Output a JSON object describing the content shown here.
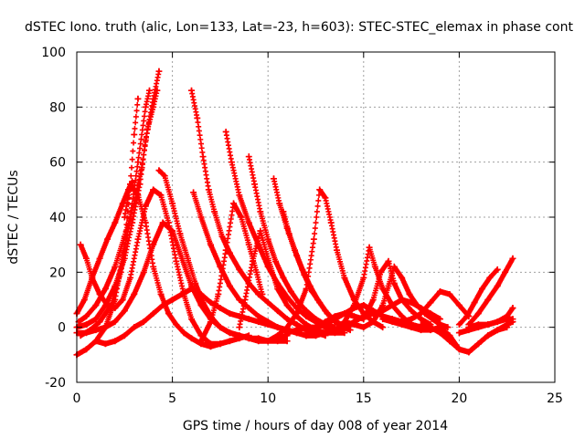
{
  "chart_data": {
    "type": "scatter",
    "title": "dSTEC Iono. truth (alic, Lon=133, Lat=-23, h=603): STEC-STEC_elemax in phase cont",
    "xlabel": "GPS time / hours of day 008 of year 2014",
    "ylabel": "dSTEC  / TECUs",
    "xlim": [
      0,
      25
    ],
    "ylim": [
      -20,
      100
    ],
    "xticks": [
      0,
      5,
      10,
      15,
      20,
      25
    ],
    "yticks": [
      -20,
      0,
      20,
      40,
      60,
      80,
      100
    ],
    "grid": true,
    "marker": "+",
    "colors": {
      "series": "#ff0000"
    },
    "series": [
      {
        "x": [
          0.0,
          0.5,
          1.0,
          1.5,
          2.0,
          2.5,
          2.8,
          3.0,
          3.2
        ],
        "y": [
          -10,
          -8,
          -5,
          0,
          10,
          30,
          52,
          70,
          83
        ]
      },
      {
        "x": [
          0.2,
          0.7,
          1.2,
          1.8,
          2.3,
          2.8,
          3.2,
          3.6,
          3.8
        ],
        "y": [
          -3,
          -1,
          2,
          8,
          20,
          40,
          60,
          80,
          86
        ]
      },
      {
        "x": [
          0.0,
          0.5,
          1.0,
          1.5,
          2.0,
          2.5,
          2.9,
          3.3,
          3.6,
          4.0,
          4.3
        ],
        "y": [
          0,
          1,
          3,
          8,
          15,
          25,
          38,
          52,
          68,
          83,
          93
        ]
      },
      {
        "x": [
          0.1,
          0.5,
          1.0,
          1.5,
          2.0,
          2.5,
          3.0,
          3.4,
          3.7,
          4.0,
          4.2
        ],
        "y": [
          2,
          4,
          8,
          14,
          22,
          33,
          45,
          58,
          72,
          80,
          86
        ]
      },
      {
        "x": [
          0.0,
          0.4,
          0.8,
          1.2,
          1.6,
          2.0,
          2.4,
          2.7,
          2.9
        ],
        "y": [
          5,
          10,
          18,
          25,
          32,
          38,
          45,
          50,
          53
        ]
      },
      {
        "x": [
          0.2,
          0.5,
          0.8,
          1.2,
          1.6,
          2.0,
          2.4,
          2.8,
          3.2,
          3.6,
          4.0,
          4.4,
          4.8,
          5.2,
          5.6,
          6.0,
          6.5,
          7.0,
          7.5
        ],
        "y": [
          30,
          25,
          18,
          12,
          8,
          7,
          10,
          18,
          32,
          44,
          50,
          48,
          38,
          24,
          12,
          3,
          -3,
          -6,
          -6
        ]
      },
      {
        "x": [
          2.5,
          2.8,
          3.2,
          3.6,
          4.0,
          4.4,
          4.8,
          5.2,
          5.6,
          6.0,
          6.5,
          7.0,
          7.5,
          8.0,
          8.5,
          9.0
        ],
        "y": [
          40,
          52,
          48,
          38,
          22,
          12,
          5,
          1,
          -2,
          -4,
          -6,
          -7,
          -6,
          -5,
          -4,
          -3
        ]
      },
      {
        "x": [
          0.0,
          0.5,
          1.0,
          1.5,
          2.0,
          2.5,
          3.0,
          3.5,
          4.0,
          4.5,
          5.0,
          5.5,
          6.0,
          6.5,
          7.0,
          7.5,
          8.0,
          8.5,
          9.0,
          9.5,
          10.0,
          10.5,
          11.0
        ],
        "y": [
          -2,
          -2,
          -1,
          0,
          2,
          6,
          12,
          20,
          30,
          38,
          35,
          25,
          15,
          8,
          3,
          0,
          -2,
          -3,
          -4,
          -5,
          -5,
          -4,
          -3
        ]
      },
      {
        "x": [
          4.3,
          4.6,
          5.0,
          5.4,
          5.8,
          6.2,
          6.6,
          7.0,
          7.5,
          8.0,
          8.5,
          9.0,
          9.5,
          10.0,
          10.5,
          11.0
        ],
        "y": [
          57,
          55,
          45,
          34,
          25,
          16,
          9,
          4,
          0,
          -2,
          -3,
          -4,
          -4,
          -5,
          -5,
          -5
        ]
      },
      {
        "x": [
          1.0,
          1.5,
          2.0,
          2.5,
          3.0,
          3.5,
          4.0,
          4.5,
          5.0,
          5.5,
          6.0,
          6.5,
          7.0,
          7.5,
          8.0,
          8.5,
          9.0,
          9.5,
          10.0,
          10.5,
          11.0,
          11.5,
          12.0
        ],
        "y": [
          -5,
          -6,
          -5,
          -3,
          0,
          2,
          5,
          8,
          10,
          12,
          14,
          12,
          9,
          7,
          5,
          4,
          3,
          2,
          1,
          0,
          -1,
          -2,
          -3
        ]
      },
      {
        "x": [
          6.0,
          6.3,
          6.6,
          6.9,
          7.2,
          7.6,
          8.0,
          8.5,
          9.0,
          9.5,
          10.0,
          10.5,
          11.0,
          11.5,
          12.0,
          12.5,
          13.0
        ],
        "y": [
          86,
          76,
          62,
          50,
          42,
          33,
          27,
          21,
          16,
          12,
          9,
          6,
          3,
          1,
          -1,
          -2,
          -3
        ]
      },
      {
        "x": [
          6.1,
          6.5,
          7.0,
          7.5,
          8.0,
          8.5,
          9.0,
          9.5,
          10.0,
          10.5,
          11.0,
          11.5,
          12.0,
          12.5
        ],
        "y": [
          49,
          40,
          30,
          22,
          15,
          10,
          7,
          4,
          2,
          0,
          -1,
          -2,
          -3,
          -3
        ]
      },
      {
        "x": [
          6.5,
          7.0,
          7.4,
          7.8,
          8.2,
          8.6,
          9.0,
          9.4,
          9.7
        ],
        "y": [
          -5,
          2,
          12,
          28,
          45,
          40,
          30,
          20,
          12
        ]
      },
      {
        "x": [
          7.8,
          8.1,
          8.5,
          9.0,
          9.5,
          10.0,
          10.5,
          11.0,
          11.5,
          12.0,
          12.5,
          13.0,
          13.5
        ],
        "y": [
          71,
          60,
          48,
          38,
          30,
          22,
          16,
          11,
          7,
          4,
          2,
          0,
          -1
        ]
      },
      {
        "x": [
          8.5,
          8.8,
          9.2,
          9.6,
          10.0,
          10.5,
          11.0,
          11.5,
          12.0,
          12.5,
          13.0,
          13.5,
          14.0
        ],
        "y": [
          0,
          10,
          24,
          35,
          25,
          14,
          8,
          4,
          1,
          -1,
          -2,
          -2,
          -2
        ]
      },
      {
        "x": [
          9.0,
          9.3,
          9.6,
          10.0,
          10.4,
          10.8,
          11.2,
          11.6,
          12.0,
          12.5,
          13.0,
          13.5
        ],
        "y": [
          62,
          52,
          42,
          32,
          24,
          18,
          13,
          9,
          6,
          3,
          1,
          0
        ]
      },
      {
        "x": [
          10.3,
          10.6,
          11.0,
          11.4,
          11.8,
          12.2,
          12.6,
          13.0,
          13.4,
          13.8,
          14.2
        ],
        "y": [
          54,
          45,
          36,
          28,
          21,
          15,
          10,
          6,
          3,
          1,
          0
        ]
      },
      {
        "x": [
          10.8,
          11.1,
          11.5,
          11.9,
          12.3,
          12.7,
          13.1,
          13.5,
          13.9,
          14.3
        ],
        "y": [
          42,
          34,
          26,
          19,
          13,
          9,
          5,
          2,
          0,
          -1
        ]
      },
      {
        "x": [
          10.0,
          10.5,
          11.0,
          11.5,
          12.0,
          12.4,
          12.7,
          13.0,
          13.3,
          13.6,
          14.0,
          14.5,
          15.0,
          15.5,
          16.0
        ],
        "y": [
          -5,
          -3,
          0,
          5,
          14,
          32,
          50,
          47,
          38,
          28,
          18,
          10,
          5,
          2,
          0
        ]
      },
      {
        "x": [
          11.0,
          11.5,
          12.0,
          12.5,
          13.0,
          13.5,
          14.0,
          14.5,
          15.0,
          15.5,
          16.0,
          16.5,
          17.0,
          17.5,
          18.0
        ],
        "y": [
          -2,
          -1,
          0,
          0,
          1,
          3,
          5,
          7,
          8,
          6,
          4,
          3,
          2,
          1,
          0
        ]
      },
      {
        "x": [
          12.0,
          12.5,
          13.0,
          13.5,
          14.0,
          14.5,
          15.0,
          15.3,
          15.6,
          16.0,
          16.5,
          17.0,
          17.5,
          18.0
        ],
        "y": [
          -3,
          -3,
          -2,
          -1,
          2,
          8,
          18,
          29,
          22,
          14,
          8,
          4,
          1,
          0
        ]
      },
      {
        "x": [
          12.5,
          13.0,
          13.5,
          14.0,
          14.5,
          15.0,
          15.5,
          15.9,
          16.3,
          16.6,
          17.0,
          17.5,
          18.0,
          18.5
        ],
        "y": [
          0,
          2,
          4,
          5,
          4,
          3,
          10,
          20,
          24,
          16,
          10,
          6,
          3,
          1
        ]
      },
      {
        "x": [
          13.0,
          13.5,
          14.0,
          14.5,
          15.0,
          15.5,
          16.0,
          16.5,
          17.0,
          17.5,
          18.0,
          18.5,
          19.0
        ],
        "y": [
          -2,
          -1,
          0,
          2,
          4,
          5,
          6,
          8,
          10,
          9,
          7,
          5,
          3
        ]
      },
      {
        "x": [
          14.0,
          14.5,
          15.0,
          15.5,
          16.0,
          16.3,
          16.6,
          17.0,
          17.4,
          17.8,
          18.2,
          18.6,
          19.0,
          19.4
        ],
        "y": [
          2,
          1,
          0,
          2,
          8,
          15,
          22,
          18,
          12,
          8,
          5,
          3,
          1,
          0
        ]
      },
      {
        "x": [
          15.0,
          15.5,
          16.0,
          16.5,
          17.0,
          17.5,
          18.0,
          18.5,
          19.0,
          19.5,
          20.0,
          20.5
        ],
        "y": [
          8,
          6,
          4,
          3,
          2,
          3,
          5,
          9,
          13,
          12,
          8,
          4
        ]
      },
      {
        "x": [
          16.0,
          16.5,
          17.0,
          17.5,
          18.0,
          18.5,
          19.0,
          19.5,
          20.0,
          20.5,
          21.0,
          21.5,
          22.0,
          22.5
        ],
        "y": [
          3,
          2,
          1,
          0,
          -1,
          -1,
          0,
          -3,
          -8,
          -9,
          -6,
          -3,
          -1,
          0
        ]
      },
      {
        "x": [
          18.0,
          18.5,
          19.0,
          19.5,
          20.0,
          20.5,
          21.0,
          21.5,
          22.0,
          22.5,
          22.8
        ],
        "y": [
          1,
          0,
          -2,
          -5,
          -8,
          -9,
          -6,
          -3,
          -1,
          1,
          2
        ]
      },
      {
        "x": [
          20.0,
          20.4,
          20.8,
          21.2,
          21.6,
          22.0
        ],
        "y": [
          1,
          4,
          9,
          14,
          18,
          21
        ]
      },
      {
        "x": [
          20.5,
          21.0,
          21.5,
          22.0,
          22.4,
          22.8
        ],
        "y": [
          1,
          5,
          10,
          15,
          20,
          25
        ]
      },
      {
        "x": [
          20.0,
          20.5,
          21.0,
          21.5,
          22.0,
          22.5,
          22.8
        ],
        "y": [
          -2,
          -1,
          0,
          1,
          2,
          4,
          7
        ]
      },
      {
        "x": [
          20.5,
          21.0,
          21.5,
          22.0,
          22.5,
          22.8
        ],
        "y": [
          0,
          1,
          1,
          2,
          3,
          3
        ]
      }
    ]
  }
}
